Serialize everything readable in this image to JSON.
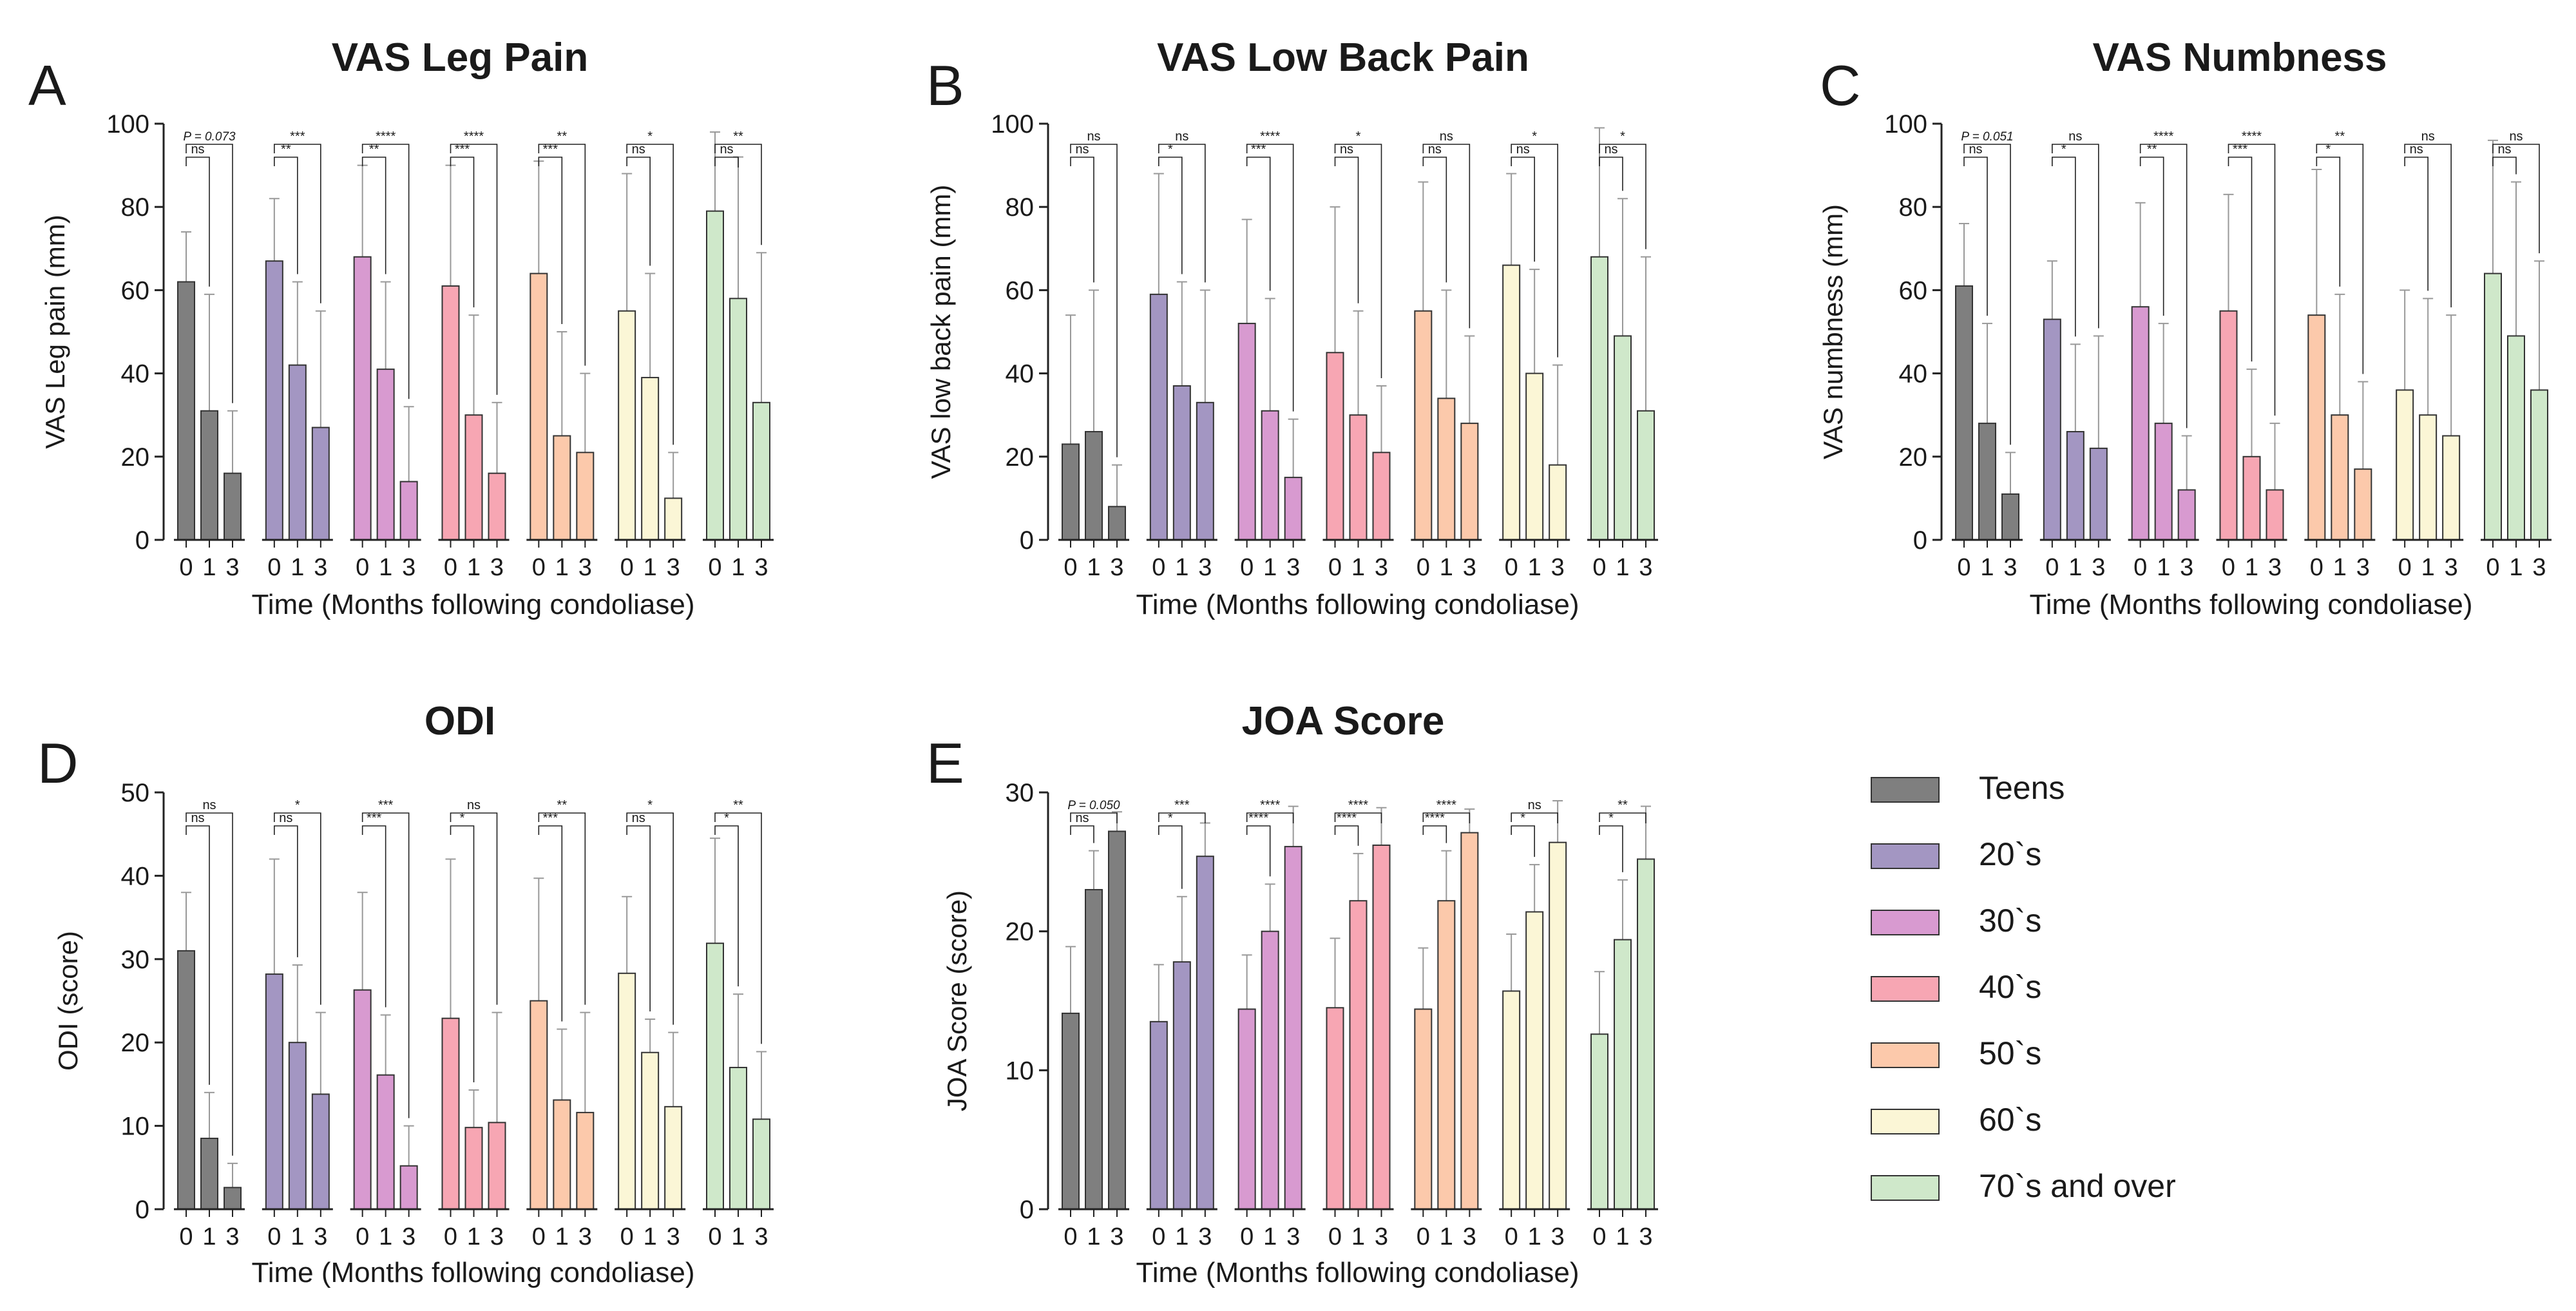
{
  "chart_data": [
    {
      "letter": "A",
      "type": "bar",
      "title": "VAS Leg Pain",
      "ylabel": "VAS Leg pain (mm)",
      "xlabel": "Time (Months following condoliase)",
      "ylim": [
        0,
        100
      ],
      "yticks": [
        "0",
        "20",
        "40",
        "60",
        "80",
        "100"
      ],
      "time_labels": [
        "0",
        "1",
        "3"
      ],
      "groups": [
        {
          "name": "Teens",
          "values": [
            62,
            31,
            16
          ],
          "sd_upper": [
            74,
            59,
            31
          ],
          "sig_01": "ns",
          "sig_03": "P = 0.073"
        },
        {
          "name": "20`s",
          "values": [
            67,
            42,
            27
          ],
          "sd_upper": [
            82,
            62,
            55
          ],
          "sig_01": "**",
          "sig_03": "***"
        },
        {
          "name": "30`s",
          "values": [
            68,
            41,
            14
          ],
          "sd_upper": [
            90,
            62,
            32
          ],
          "sig_01": "**",
          "sig_03": "****"
        },
        {
          "name": "40`s",
          "values": [
            61,
            30,
            16
          ],
          "sd_upper": [
            90,
            54,
            33
          ],
          "sig_01": "***",
          "sig_03": "****"
        },
        {
          "name": "50`s",
          "values": [
            64,
            25,
            21
          ],
          "sd_upper": [
            91,
            50,
            40
          ],
          "sig_01": "***",
          "sig_03": "**"
        },
        {
          "name": "60`s",
          "values": [
            55,
            39,
            10
          ],
          "sd_upper": [
            88,
            64,
            21
          ],
          "sig_01": "ns",
          "sig_03": "*"
        },
        {
          "name": "70`s and over",
          "values": [
            79,
            58,
            33
          ],
          "sd_upper": [
            98,
            92,
            69
          ],
          "sig_01": "ns",
          "sig_03": "**"
        }
      ]
    },
    {
      "letter": "B",
      "type": "bar",
      "title": "VAS Low Back Pain",
      "ylabel": "VAS low back pain (mm)",
      "xlabel": "Time (Months following condoliase)",
      "ylim": [
        0,
        100
      ],
      "yticks": [
        "0",
        "20",
        "40",
        "60",
        "80",
        "100"
      ],
      "time_labels": [
        "0",
        "1",
        "3"
      ],
      "groups": [
        {
          "name": "Teens",
          "values": [
            23,
            26,
            8
          ],
          "sd_upper": [
            54,
            60,
            18
          ],
          "sig_01": "ns",
          "sig_03": "ns"
        },
        {
          "name": "20`s",
          "values": [
            59,
            37,
            33
          ],
          "sd_upper": [
            88,
            62,
            60
          ],
          "sig_01": "*",
          "sig_03": "ns"
        },
        {
          "name": "30`s",
          "values": [
            52,
            31,
            15
          ],
          "sd_upper": [
            77,
            58,
            29
          ],
          "sig_01": "***",
          "sig_03": "****"
        },
        {
          "name": "40`s",
          "values": [
            45,
            30,
            21
          ],
          "sd_upper": [
            80,
            55,
            37
          ],
          "sig_01": "ns",
          "sig_03": "*"
        },
        {
          "name": "50`s",
          "values": [
            55,
            34,
            28
          ],
          "sd_upper": [
            86,
            60,
            49
          ],
          "sig_01": "ns",
          "sig_03": "ns"
        },
        {
          "name": "60`s",
          "values": [
            66,
            40,
            18
          ],
          "sd_upper": [
            88,
            65,
            42
          ],
          "sig_01": "ns",
          "sig_03": "*"
        },
        {
          "name": "70`s and over",
          "values": [
            68,
            49,
            31
          ],
          "sd_upper": [
            99,
            82,
            68
          ],
          "sig_01": "ns",
          "sig_03": "*"
        }
      ]
    },
    {
      "letter": "C",
      "type": "bar",
      "title": "VAS Numbness",
      "ylabel": "VAS numbness (mm)",
      "xlabel": "Time (Months following condoliase)",
      "ylim": [
        0,
        100
      ],
      "yticks": [
        "0",
        "20",
        "40",
        "60",
        "80",
        "100"
      ],
      "time_labels": [
        "0",
        "1",
        "3"
      ],
      "groups": [
        {
          "name": "Teens",
          "values": [
            61,
            28,
            11
          ],
          "sd_upper": [
            76,
            52,
            21
          ],
          "sig_01": "ns",
          "sig_03": "P = 0.051"
        },
        {
          "name": "20`s",
          "values": [
            53,
            26,
            22
          ],
          "sd_upper": [
            67,
            47,
            49
          ],
          "sig_01": "*",
          "sig_03": "ns"
        },
        {
          "name": "30`s",
          "values": [
            56,
            28,
            12
          ],
          "sd_upper": [
            81,
            52,
            25
          ],
          "sig_01": "**",
          "sig_03": "****"
        },
        {
          "name": "40`s",
          "values": [
            55,
            20,
            12
          ],
          "sd_upper": [
            83,
            41,
            28
          ],
          "sig_01": "***",
          "sig_03": "****"
        },
        {
          "name": "50`s",
          "values": [
            54,
            30,
            17
          ],
          "sd_upper": [
            89,
            59,
            38
          ],
          "sig_01": "*",
          "sig_03": "**"
        },
        {
          "name": "60`s",
          "values": [
            36,
            30,
            25
          ],
          "sd_upper": [
            60,
            58,
            54
          ],
          "sig_01": "ns",
          "sig_03": "ns"
        },
        {
          "name": "70`s and over",
          "values": [
            64,
            49,
            36
          ],
          "sd_upper": [
            96,
            86,
            67
          ],
          "sig_01": "ns",
          "sig_03": "ns"
        }
      ]
    },
    {
      "letter": "D",
      "type": "bar",
      "title": "ODI",
      "ylabel": "ODI (score)",
      "xlabel": "Time (Months following condoliase)",
      "ylim": [
        0,
        50
      ],
      "yticks": [
        "0",
        "10",
        "20",
        "30",
        "40",
        "50"
      ],
      "time_labels": [
        "0",
        "1",
        "3"
      ],
      "groups": [
        {
          "name": "Teens",
          "values": [
            31,
            8.5,
            2.6
          ],
          "sd_upper": [
            38,
            14,
            5.5
          ],
          "sig_01": "ns",
          "sig_03": "ns"
        },
        {
          "name": "20`s",
          "values": [
            28.2,
            20,
            13.8
          ],
          "sd_upper": [
            42,
            29.3,
            23.6
          ],
          "sig_01": "ns",
          "sig_03": "*"
        },
        {
          "name": "30`s",
          "values": [
            26.3,
            16.1,
            5.2
          ],
          "sd_upper": [
            38,
            23.3,
            10
          ],
          "sig_01": "***",
          "sig_03": "***"
        },
        {
          "name": "40`s",
          "values": [
            22.9,
            9.8,
            10.4
          ],
          "sd_upper": [
            42,
            14.3,
            23.6
          ],
          "sig_01": "*",
          "sig_03": "ns"
        },
        {
          "name": "50`s",
          "values": [
            25,
            13.1,
            11.6
          ],
          "sd_upper": [
            39.7,
            21.6,
            23.6
          ],
          "sig_01": "***",
          "sig_03": "**"
        },
        {
          "name": "60`s",
          "values": [
            28.3,
            18.8,
            12.3
          ],
          "sd_upper": [
            37.5,
            22.8,
            21.2
          ],
          "sig_01": "ns",
          "sig_03": "*"
        },
        {
          "name": "70`s and over",
          "values": [
            31.9,
            17,
            10.8
          ],
          "sd_upper": [
            44.5,
            25.8,
            18.9
          ],
          "sig_01": "*",
          "sig_03": "**"
        }
      ]
    },
    {
      "letter": "E",
      "type": "bar",
      "title": "JOA Score",
      "ylabel": "JOA Score (score)",
      "xlabel": "Time (Months following condoliase)",
      "ylim": [
        0,
        30
      ],
      "yticks": [
        "0",
        "10",
        "20",
        "30"
      ],
      "time_labels": [
        "0",
        "1",
        "3"
      ],
      "groups": [
        {
          "name": "Teens",
          "values": [
            14.1,
            23,
            27.2
          ],
          "sd_upper": [
            18.9,
            25.8,
            28.6
          ],
          "sig_01": "ns",
          "sig_03": "P = 0.050"
        },
        {
          "name": "20`s",
          "values": [
            13.5,
            17.8,
            25.4
          ],
          "sd_upper": [
            17.6,
            22.5,
            27.8
          ],
          "sig_01": "*",
          "sig_03": "***"
        },
        {
          "name": "30`s",
          "values": [
            14.4,
            20,
            26.1
          ],
          "sd_upper": [
            18.3,
            23.4,
            29
          ],
          "sig_01": "****",
          "sig_03": "****"
        },
        {
          "name": "40`s",
          "values": [
            14.5,
            22.2,
            26.2
          ],
          "sd_upper": [
            19.5,
            25.6,
            28.9
          ],
          "sig_01": "****",
          "sig_03": "****"
        },
        {
          "name": "50`s",
          "values": [
            14.4,
            22.2,
            27.1
          ],
          "sd_upper": [
            18.8,
            25.8,
            28.8
          ],
          "sig_01": "****",
          "sig_03": "****"
        },
        {
          "name": "60`s",
          "values": [
            15.7,
            21.4,
            26.4
          ],
          "sd_upper": [
            19.8,
            24.8,
            29.4
          ],
          "sig_01": "*",
          "sig_03": "ns"
        },
        {
          "name": "70`s and over",
          "values": [
            12.6,
            19.4,
            25.2
          ],
          "sd_upper": [
            17.1,
            23.7,
            29
          ],
          "sig_01": "*",
          "sig_03": "**"
        }
      ]
    }
  ],
  "legend": [
    {
      "label": "Teens",
      "color": "#7f7f7f"
    },
    {
      "label": "20`s",
      "color": "#a396c2"
    },
    {
      "label": "30`s",
      "color": "#d89ad0"
    },
    {
      "label": "40`s",
      "color": "#f7a6b3"
    },
    {
      "label": "50`s",
      "color": "#fcc9ab"
    },
    {
      "label": "60`s",
      "color": "#fbf6d6"
    },
    {
      "label": "70`s and over",
      "color": "#cfe8ca"
    }
  ]
}
